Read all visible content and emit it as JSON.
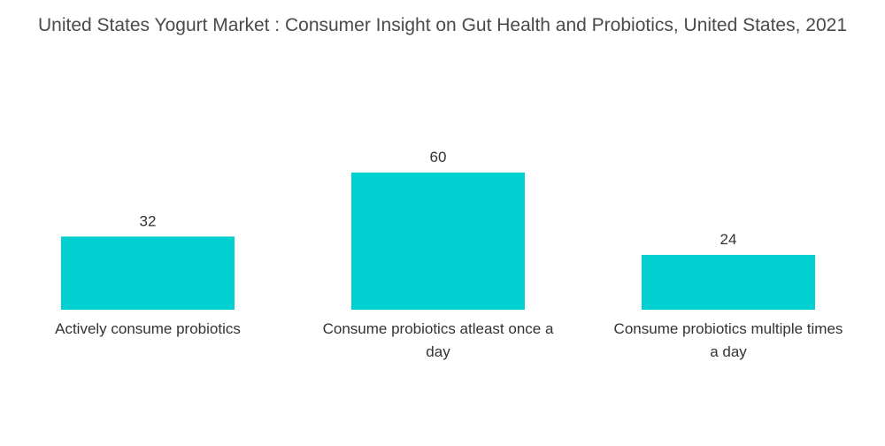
{
  "chart_data": {
    "type": "bar",
    "title": "United States Yogurt Market : Consumer Insight on Gut Health and Probiotics, United States, 2021",
    "categories": [
      "Actively consume probiotics",
      "Consume probiotics atleast once a day",
      "Consume probiotics multiple times a day"
    ],
    "category_lines": [
      [
        "Actively consume probiotics"
      ],
      [
        "Consume probiotics atleast once a",
        "day"
      ],
      [
        "Consume probiotics multiple times",
        "a day"
      ]
    ],
    "values": [
      32,
      60,
      24
    ],
    "ylim": [
      0,
      60
    ],
    "xlabel": "",
    "ylabel": "",
    "grid": false,
    "legend": "none",
    "colors": {
      "bar": "#00d0d0"
    }
  }
}
